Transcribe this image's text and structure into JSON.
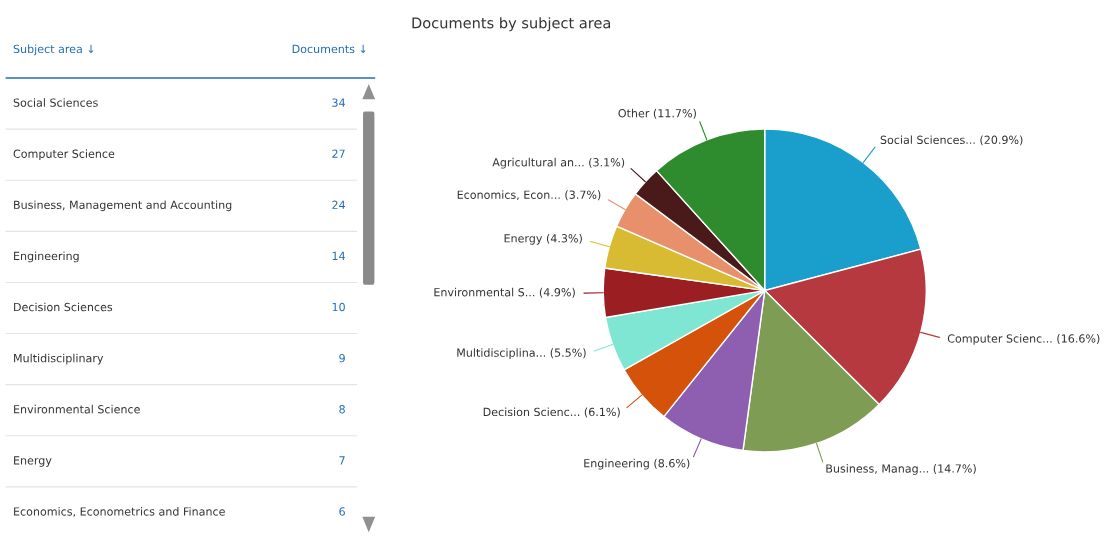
{
  "chart_data": [
    {
      "type": "other",
      "annotations": [
        "Subject area ↓",
        "Documents ↓"
      ],
      "categories": [
        "Social Sciences",
        "Computer Science",
        "Business, Management and Accounting",
        "Engineering",
        "Decision Sciences",
        "Multidisciplinary",
        "Environmental Science",
        "Energy",
        "Economics, Econometrics and Finance"
      ],
      "values": [
        34,
        27,
        24,
        14,
        10,
        9,
        8,
        7,
        6
      ],
      "data_labels": true
    },
    {
      "type": "pie",
      "title": "Documents by subject area",
      "categories": [
        "Social Sciences... (20.9%)",
        "Computer Scienc... (16.6%)",
        "Business, Manag... (14.7%)",
        "Engineering (8.6%)",
        "Decision Scienc... (6.1%)",
        "Multidisciplina... (5.5%)",
        "Environmental S... (4.9%)",
        "Energy (4.3%)",
        "Economics, Econ... (3.7%)",
        "Agricultural an... (3.1%)",
        "Other (11.7%)"
      ],
      "values": [
        20.9,
        16.6,
        14.7,
        8.6,
        6.1,
        5.5,
        4.9,
        4.3,
        3.7,
        3.1,
        11.7
      ],
      "colors": [
        "#1a9fcd",
        "#b5393f",
        "#7f9c55",
        "#8e5fb0",
        "#d45209",
        "#80e6d4",
        "#9b1e22",
        "#d9bb33",
        "#e8906b",
        "#4a1a1a",
        "#2e8b2e"
      ]
    }
  ]
}
